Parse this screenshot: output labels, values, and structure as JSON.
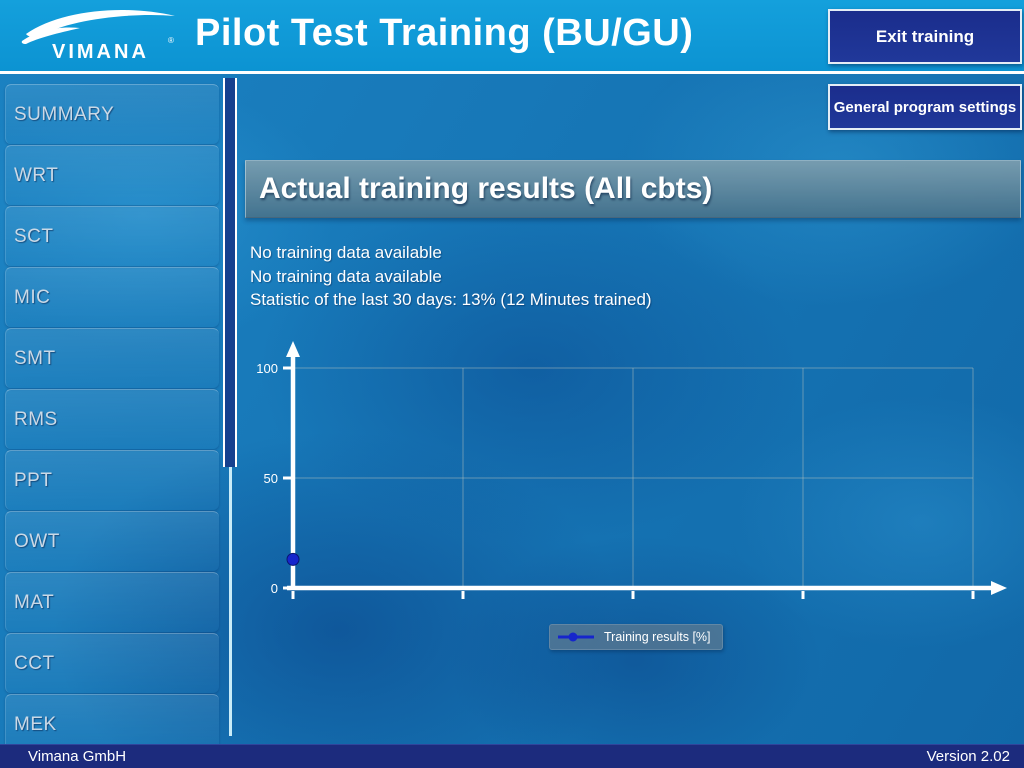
{
  "header": {
    "logo_text": "VIMANA",
    "logo_reg_mark": "®",
    "title": "Pilot Test Training (BU/GU)",
    "exit_button_label": "Exit training",
    "settings_button_label": "General program settings"
  },
  "sidebar": {
    "items": [
      "SUMMARY",
      "WRT",
      "SCT",
      "MIC",
      "SMT",
      "RMS",
      "PPT",
      "OWT",
      "MAT",
      "CCT",
      "MEK"
    ]
  },
  "main": {
    "section_title": "Actual training results (All cbts)",
    "info_lines": [
      "No training data available",
      "No training data available",
      "Statistic of the last 30 days: 13% (12 Minutes trained)"
    ],
    "legend_label": "Training results [%]"
  },
  "footer": {
    "company": "Vimana GmbH",
    "version": "Version 2.02"
  },
  "colors": {
    "header_blue": "#0f9ad6",
    "button_navy": "#1b2e8e",
    "footer_navy": "#1c2b7d",
    "point_blue": "#1626cc",
    "axis_white": "#ffffff",
    "gridline": "rgba(200,205,190,0.45)"
  },
  "chart_data": {
    "type": "line",
    "title": "",
    "xlabel": "",
    "ylabel": "",
    "y_axis": {
      "ticks": [
        0,
        50,
        100
      ],
      "range": [
        0,
        100
      ]
    },
    "x_gridlines": 4,
    "grid": true,
    "legend_position": "bottom",
    "series": [
      {
        "name": "Training results [%]",
        "color": "#1626cc",
        "points": [
          {
            "x": 0,
            "y": 13
          }
        ]
      }
    ]
  }
}
